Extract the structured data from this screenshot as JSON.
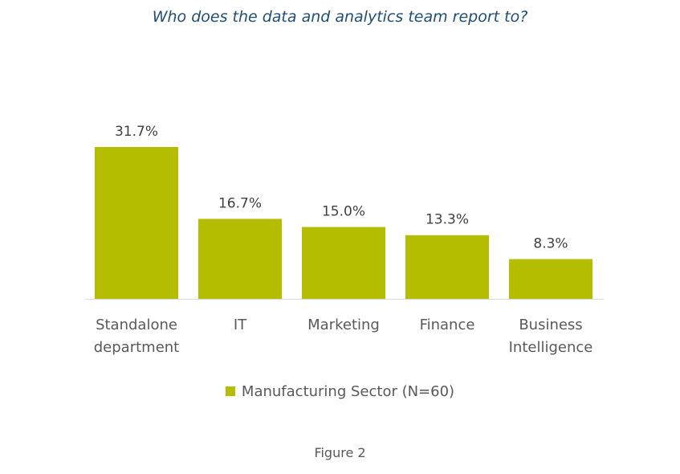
{
  "chart_data": {
    "type": "bar",
    "title": "Who does the data and analytics team report to?",
    "categories": [
      [
        "Standalone",
        "department"
      ],
      [
        "IT"
      ],
      [
        "Marketing"
      ],
      [
        "Finance"
      ],
      [
        "Business",
        "Intelligence"
      ]
    ],
    "series": [
      {
        "name": "Manufacturing Sector (N=60)",
        "values": [
          31.7,
          16.7,
          15.0,
          13.3,
          8.3
        ],
        "labels": [
          "31.7%",
          "16.7%",
          "15.0%",
          "13.3%",
          "8.3%"
        ],
        "color": "#b5bd00"
      }
    ],
    "ylim": [
      0,
      31.7
    ],
    "grid": false,
    "legend_position": "bottom"
  },
  "caption": "Figure 2"
}
